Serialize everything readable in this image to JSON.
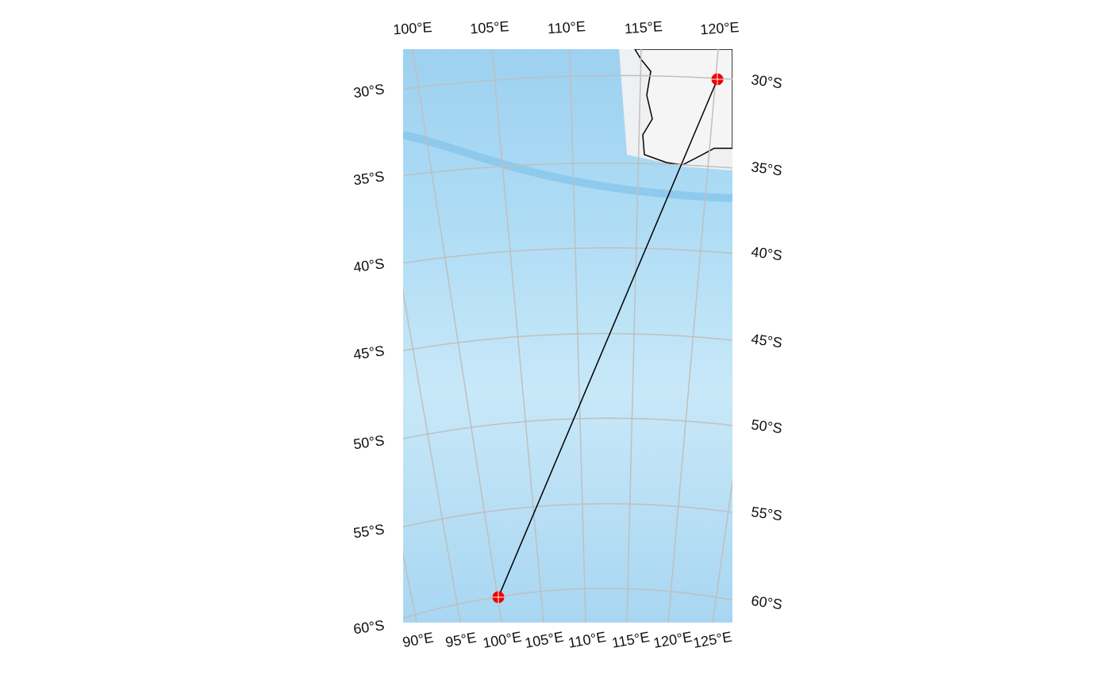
{
  "map": {
    "top_labels": [
      "100°E",
      "105°E",
      "110°E",
      "115°E",
      "120°E"
    ],
    "left_labels": [
      "30°S",
      "35°S",
      "40°S",
      "45°S",
      "50°S",
      "55°S",
      "60°S"
    ],
    "right_labels": [
      "30°S",
      "35°S",
      "40°S",
      "45°S",
      "50°S",
      "55°S",
      "60°S"
    ],
    "bottom_labels": [
      "90°E",
      "95°E",
      "100°E",
      "105°E",
      "110°E",
      "115°E",
      "120°E",
      "125°E"
    ]
  }
}
